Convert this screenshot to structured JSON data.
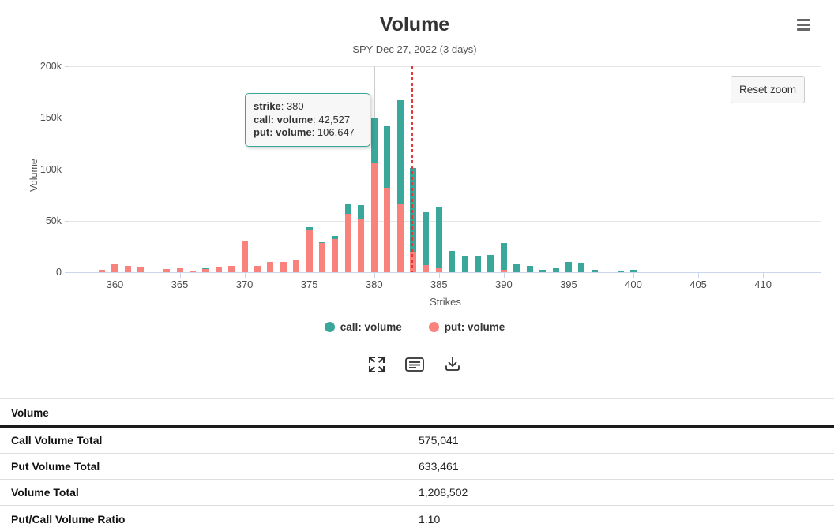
{
  "header": {
    "title": "Volume",
    "subtitle": "SPY Dec 27, 2022 (3 days)",
    "menu_icon": "hamburger-menu-icon"
  },
  "controls": {
    "reset_zoom_label": "Reset zoom",
    "toolbar_icons": [
      "expand-icon",
      "notes-icon",
      "download-icon"
    ]
  },
  "tooltip": {
    "rows": [
      {
        "label": "strike",
        "value": "380"
      },
      {
        "label": "call: volume",
        "value": "42,527"
      },
      {
        "label": "put: volume",
        "value": "106,647"
      }
    ]
  },
  "colors": {
    "call": "#3aa79b",
    "put": "#f9827c",
    "price_line": "#e53935",
    "crosshair": "#cccccc",
    "gridline": "#e6e6e6",
    "axis_line": "#ccd6eb"
  },
  "chart_data": {
    "type": "bar",
    "stacked": true,
    "title": "Volume",
    "subtitle": "SPY Dec 27, 2022 (3 days)",
    "xlabel": "Strikes",
    "ylabel": "Volume",
    "x_range": [
      356.5,
      414.5
    ],
    "ylim": [
      0,
      200000
    ],
    "grid": true,
    "legend_position": "bottom",
    "y_ticks": [
      {
        "value": 0,
        "label": "0"
      },
      {
        "value": 50000,
        "label": "50k"
      },
      {
        "value": 100000,
        "label": "100k"
      },
      {
        "value": 150000,
        "label": "150k"
      },
      {
        "value": 200000,
        "label": "200k"
      }
    ],
    "x_ticks": [
      360,
      365,
      370,
      375,
      380,
      385,
      390,
      395,
      400,
      405,
      410
    ],
    "categories": [
      359,
      360,
      361,
      362,
      364,
      365,
      366,
      367,
      368,
      369,
      370,
      371,
      372,
      373,
      374,
      375,
      376,
      377,
      378,
      379,
      380,
      381,
      382,
      383,
      384,
      385,
      386,
      387,
      388,
      389,
      390,
      391,
      392,
      393,
      394,
      395,
      396,
      397,
      399,
      400
    ],
    "series": [
      {
        "name": "put: volume",
        "color": "#f9827c",
        "stack_order": "bottom",
        "values": [
          2000,
          8000,
          6000,
          4500,
          3000,
          3500,
          1800,
          3000,
          4500,
          6000,
          31000,
          6500,
          10000,
          10000,
          11500,
          41000,
          29000,
          32000,
          57000,
          51500,
          106647,
          82000,
          67000,
          19000,
          7000,
          3500,
          0,
          0,
          0,
          0,
          2000,
          0,
          0,
          0,
          0,
          0,
          0,
          0,
          0,
          0
        ]
      },
      {
        "name": "call: volume",
        "color": "#3aa79b",
        "stack_order": "top",
        "values": [
          0,
          0,
          0,
          0,
          0,
          0,
          0,
          800,
          0,
          0,
          0,
          0,
          0,
          0,
          0,
          3000,
          500,
          3000,
          9500,
          14000,
          42527,
          60000,
          100000,
          82000,
          51000,
          60000,
          21000,
          16000,
          15000,
          17000,
          26000,
          8000,
          6000,
          2000,
          3500,
          10000,
          9000,
          2500,
          1500,
          2500
        ]
      }
    ],
    "annotations": {
      "crosshair_strike": 380,
      "price_line_strike": 382.9
    }
  },
  "legend": {
    "items": [
      {
        "label": "call: volume",
        "color": "#3aa79b"
      },
      {
        "label": "put: volume",
        "color": "#f9827c"
      }
    ]
  },
  "stats_table": {
    "header": "Volume",
    "rows": [
      {
        "label": "Call Volume Total",
        "value": "575,041"
      },
      {
        "label": "Put Volume Total",
        "value": "633,461"
      },
      {
        "label": "Volume Total",
        "value": "1,208,502"
      },
      {
        "label": "Put/Call Volume Ratio",
        "value": "1.10"
      }
    ]
  }
}
